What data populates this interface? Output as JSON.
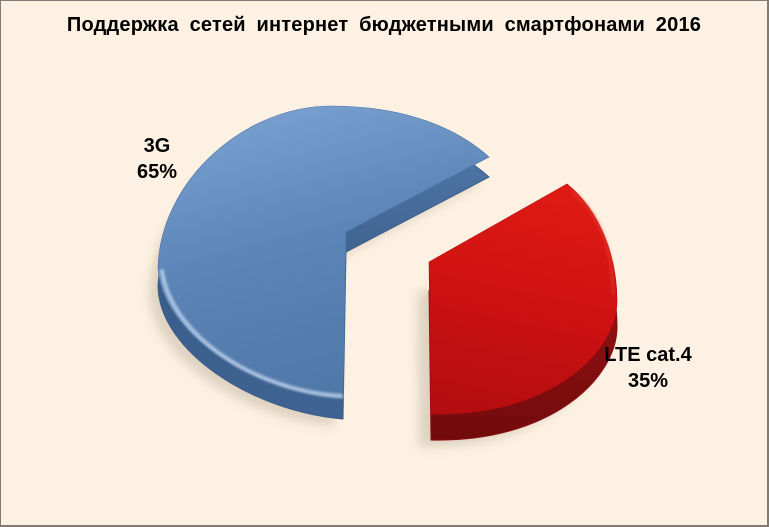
{
  "page": {
    "background": "#FCF1E2",
    "border_color": "#807A72",
    "shadow_color": "#C8B9A6"
  },
  "chart_data": {
    "type": "pie",
    "style": "3d-exploded-pie",
    "title": "Поддержка сетей интернет бюджетными смартфонами 2016",
    "legend": "none",
    "data_labels": "category name and percent, outside slices",
    "slices": [
      {
        "label": "3G",
        "value": 65,
        "display_percent": "65%",
        "exploded": false,
        "color": "#5C85B8",
        "color_light": "#7AA1D0",
        "color_dark": "#4E76A5",
        "side_color": "#3A5D8A",
        "side_light": "#4E76A6",
        "side_dark": "#3F6493",
        "highlight": "#C3D7EF"
      },
      {
        "label": "LTE cat.4",
        "value": 35,
        "display_percent": "35%",
        "exploded": true,
        "color": "#CD1112",
        "color_light": "#E01B14",
        "color_dark": "#B30D10",
        "side_color": "#8A0F11",
        "side_light": "#A61A1A",
        "side_dark": "#700A0C",
        "highlight": "#E23A2E"
      }
    ]
  }
}
